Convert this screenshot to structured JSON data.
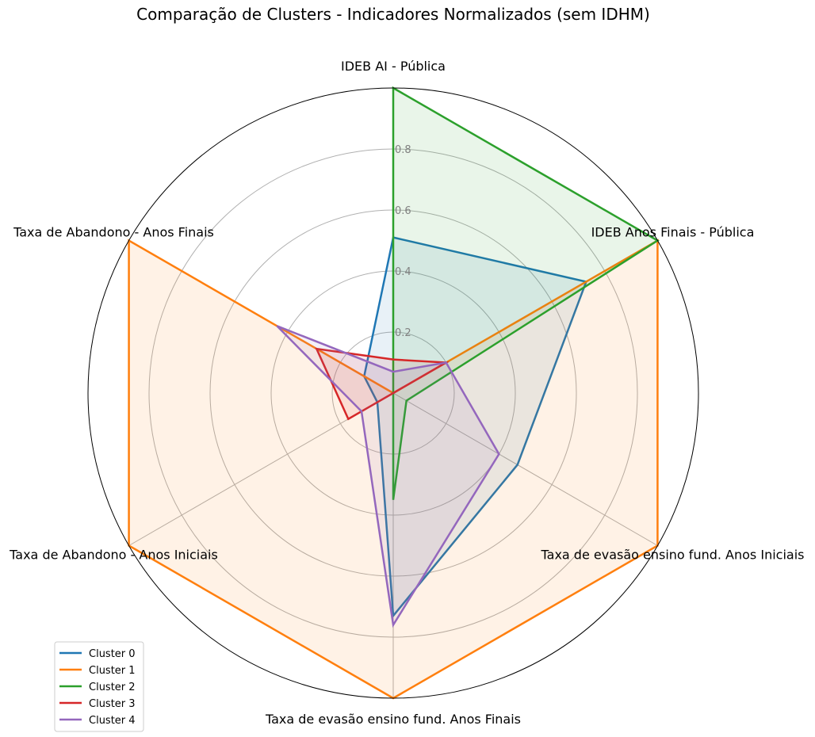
{
  "chart_data": {
    "type": "radar",
    "title": "Comparação de Clusters - Indicadores Normalizados (sem IDHM)",
    "axes": [
      "IDEB AI - Pública",
      "IDEB Anos Finais - Pública",
      "Taxa de evasão ensino fund. Anos Iniciais",
      "Taxa de evasão ensino fund. Anos Finais",
      "Taxa de Abandono - Anos Iniciais",
      "Taxa de Abandono - Anos Finais"
    ],
    "rlim": [
      0,
      1
    ],
    "radial_ticks": [
      0.2,
      0.4,
      0.6,
      0.8
    ],
    "grid": true,
    "legend_position": "lower-left",
    "series": [
      {
        "name": "Cluster 0",
        "color": "#1f77b4",
        "values": [
          0.51,
          0.73,
          0.47,
          0.73,
          0.06,
          0.11
        ]
      },
      {
        "name": "Cluster 1",
        "color": "#ff7f0e",
        "values": [
          0.0,
          1.0,
          1.0,
          1.0,
          1.0,
          1.0
        ]
      },
      {
        "name": "Cluster 2",
        "color": "#2ca02c",
        "values": [
          1.0,
          1.0,
          0.05,
          0.35,
          0.0,
          0.0
        ]
      },
      {
        "name": "Cluster 3",
        "color": "#d62728",
        "values": [
          0.11,
          0.2,
          0.0,
          0.0,
          0.17,
          0.29
        ]
      },
      {
        "name": "Cluster 4",
        "color": "#9467bd",
        "values": [
          0.07,
          0.2,
          0.4,
          0.76,
          0.12,
          0.44
        ]
      }
    ]
  }
}
